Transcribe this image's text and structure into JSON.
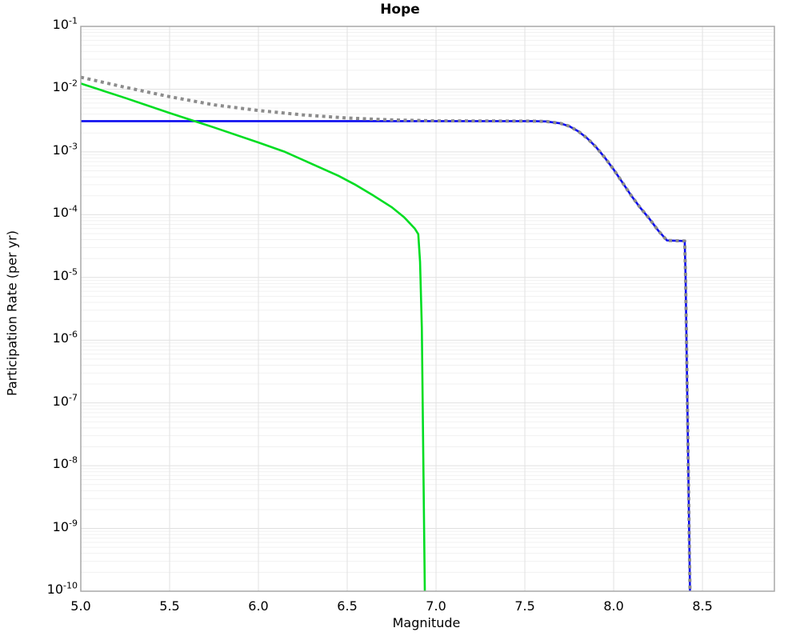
{
  "chart_data": {
    "type": "line",
    "title": "Hope",
    "xlabel": "Magnitude",
    "ylabel": "Participation Rate (per yr)",
    "legend_position": "none",
    "grid": {
      "vertical": true,
      "horizontal_major": true,
      "horizontal_minor": true
    },
    "x_axis": {
      "min": 5.0,
      "max": 8.905,
      "tick_values": [
        5.0,
        5.5,
        6.0,
        6.5,
        7.0,
        7.5,
        8.0,
        8.5
      ],
      "tick_labels": [
        "5.0",
        "5.5",
        "6.0",
        "6.5",
        "7.0",
        "7.5",
        "8.0",
        "8.5"
      ]
    },
    "y_axis": {
      "scale": "log",
      "top_exponent": -1,
      "bottom_exponent": -10,
      "tick_base": "10",
      "tick_exponents": [
        -1,
        -2,
        -3,
        -4,
        -5,
        -6,
        -7,
        -8,
        -9,
        -10
      ]
    },
    "colors": {
      "blue_line": "#0a0af0",
      "green_line": "#00dd22",
      "gray_dotted_line": "#8c8c8c",
      "grid_major": "#e0e0e0",
      "grid_minor": "#f1f1f1",
      "grid_vertical": "#e2e2e2",
      "frame": "#a8a8a8"
    },
    "series": [
      {
        "name": "blue-solid-line",
        "style": "solid",
        "color_key": "blue_line",
        "width": 2.6,
        "points_mag_log10rate": [
          [
            5.0,
            -2.51
          ],
          [
            7.55,
            -2.51
          ],
          [
            7.62,
            -2.515
          ],
          [
            7.7,
            -2.545
          ],
          [
            7.75,
            -2.59
          ],
          [
            7.8,
            -2.67
          ],
          [
            7.85,
            -2.78
          ],
          [
            7.9,
            -2.92
          ],
          [
            7.95,
            -3.09
          ],
          [
            8.0,
            -3.28
          ],
          [
            8.05,
            -3.49
          ],
          [
            8.1,
            -3.7
          ],
          [
            8.15,
            -3.89
          ],
          [
            8.2,
            -4.06
          ],
          [
            8.25,
            -4.25
          ],
          [
            8.3,
            -4.41
          ],
          [
            8.4,
            -4.42
          ],
          [
            8.405,
            -5.0
          ],
          [
            8.415,
            -7.0
          ],
          [
            8.43,
            -10.05
          ]
        ]
      },
      {
        "name": "green-solid-line",
        "style": "solid",
        "color_key": "green_line",
        "width": 2.6,
        "points_mag_log10rate": [
          [
            5.0,
            -1.91
          ],
          [
            5.25,
            -2.14
          ],
          [
            5.5,
            -2.38
          ],
          [
            5.75,
            -2.61
          ],
          [
            6.0,
            -2.85
          ],
          [
            6.15,
            -3.0
          ],
          [
            6.3,
            -3.19
          ],
          [
            6.45,
            -3.38
          ],
          [
            6.55,
            -3.53
          ],
          [
            6.65,
            -3.7
          ],
          [
            6.75,
            -3.88
          ],
          [
            6.82,
            -4.04
          ],
          [
            6.88,
            -4.22
          ],
          [
            6.9,
            -4.31
          ],
          [
            6.91,
            -4.75
          ],
          [
            6.92,
            -5.8
          ],
          [
            6.937,
            -10.05
          ]
        ]
      },
      {
        "name": "gray-dotted-line",
        "style": "dotted",
        "color_key": "gray_dotted_line",
        "width": 4,
        "points_mag_log10rate": [
          [
            5.0,
            -1.81
          ],
          [
            5.25,
            -1.97
          ],
          [
            5.5,
            -2.12
          ],
          [
            5.75,
            -2.25
          ],
          [
            6.0,
            -2.34
          ],
          [
            6.25,
            -2.41
          ],
          [
            6.5,
            -2.46
          ],
          [
            6.75,
            -2.49
          ],
          [
            7.0,
            -2.505
          ],
          [
            7.55,
            -2.51
          ],
          [
            7.62,
            -2.515
          ],
          [
            7.7,
            -2.545
          ],
          [
            7.75,
            -2.59
          ],
          [
            7.8,
            -2.67
          ],
          [
            7.85,
            -2.78
          ],
          [
            7.9,
            -2.92
          ],
          [
            7.95,
            -3.09
          ],
          [
            8.0,
            -3.28
          ],
          [
            8.05,
            -3.49
          ],
          [
            8.1,
            -3.7
          ],
          [
            8.15,
            -3.89
          ],
          [
            8.2,
            -4.06
          ],
          [
            8.25,
            -4.25
          ],
          [
            8.3,
            -4.41
          ],
          [
            8.4,
            -4.42
          ],
          [
            8.405,
            -5.0
          ],
          [
            8.415,
            -7.0
          ],
          [
            8.43,
            -10.05
          ]
        ]
      }
    ]
  }
}
